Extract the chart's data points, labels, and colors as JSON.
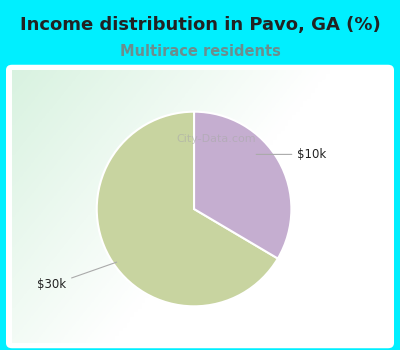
{
  "title": "Income distribution in Pavo, GA (%)",
  "subtitle": "Multirace residents",
  "slices": [
    0.665,
    0.335
  ],
  "labels": [
    "$30k",
    "$10k"
  ],
  "colors": [
    "#c8d4a0",
    "#c5aed0"
  ],
  "bg_color": "#00efff",
  "chart_bg_color": "#ffffff",
  "title_fontsize": 13,
  "subtitle_fontsize": 10.5,
  "subtitle_color": "#6b8e8e",
  "title_color": "#222222",
  "startangle": 90,
  "watermark": "City-Data.com"
}
